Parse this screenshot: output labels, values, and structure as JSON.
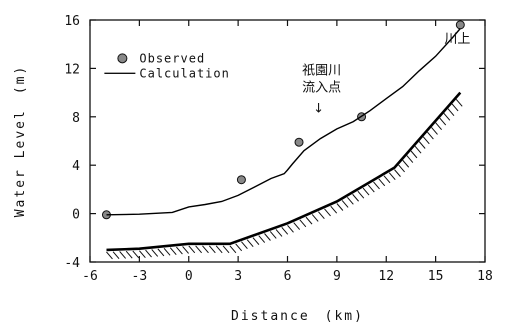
{
  "chart_data": {
    "type": "line",
    "title": "",
    "xlabel": "Distance　(km)",
    "ylabel": "Water Level　(m)",
    "xlim": [
      -6,
      18
    ],
    "ylim": [
      -4,
      16
    ],
    "xticks": [
      -6,
      -3,
      0,
      3,
      6,
      9,
      12,
      15,
      18
    ],
    "yticks": [
      -4,
      0,
      4,
      8,
      12,
      16
    ],
    "xtick_labels": [
      "-6",
      "-3",
      "0",
      "3",
      "6",
      "9",
      "12",
      "15",
      "18"
    ],
    "ytick_labels": [
      "-4",
      "0",
      "4",
      "8",
      "12",
      "16"
    ],
    "legend": {
      "placement": "top-left",
      "entries": [
        "Observed",
        "Calculation"
      ]
    },
    "series": [
      {
        "name": "Observed",
        "kind": "scatter",
        "color": "#888888",
        "x": [
          -5.0,
          3.2,
          6.7,
          10.5,
          16.5
        ],
        "y": [
          -0.1,
          2.8,
          5.9,
          8.0,
          15.6
        ]
      },
      {
        "name": "Calculation",
        "kind": "line",
        "color": "#000000",
        "x": [
          -5.0,
          -3.0,
          -1.0,
          0.0,
          1.0,
          2.0,
          3.0,
          4.0,
          5.0,
          5.8,
          6.0,
          6.3,
          7.0,
          8.0,
          9.0,
          10.0,
          11.0,
          12.0,
          13.0,
          14.0,
          15.0,
          16.0,
          16.5
        ],
        "y": [
          -0.1,
          -0.05,
          0.1,
          0.55,
          0.75,
          1.0,
          1.5,
          2.2,
          2.9,
          3.3,
          3.6,
          4.1,
          5.2,
          6.2,
          7.0,
          7.6,
          8.5,
          9.5,
          10.5,
          11.8,
          13.0,
          14.5,
          15.3
        ]
      },
      {
        "name": "",
        "kind": "riverbed",
        "color": "#000000",
        "x": [
          -5.0,
          -3.0,
          0.0,
          2.5,
          6.0,
          9.0,
          12.5,
          16.5
        ],
        "y": [
          -3.0,
          -2.9,
          -2.5,
          -2.5,
          -0.8,
          1.0,
          3.8,
          10.0
        ]
      }
    ],
    "annotations": [
      {
        "text_lines": [
          "祇園川",
          "流入点"
        ],
        "arrow": "↓",
        "target_x": 7.8,
        "target_y": 6.7
      },
      {
        "text_lines": [
          "川上"
        ],
        "target_x": 16.5,
        "target_y": 14.1
      }
    ]
  }
}
